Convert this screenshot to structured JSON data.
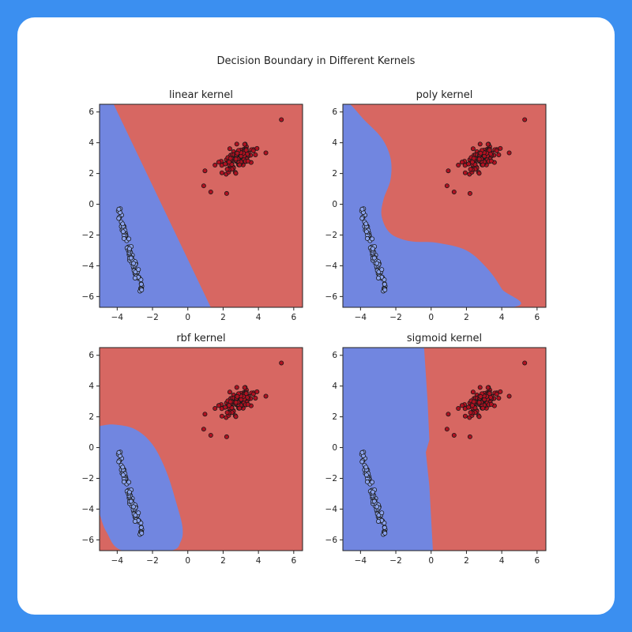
{
  "figure": {
    "suptitle": "Decision Boundary in Different Kernels"
  },
  "colors": {
    "class_neg_region": "#7186e0",
    "class_pos_region": "#d76762",
    "class_neg_point": "#8aa2ee",
    "class_pos_point": "#b01020",
    "point_edge": "#1a1a1a",
    "background": "#3b8ff0",
    "card": "#ffffff"
  },
  "chart_data": [
    {
      "type": "scatter",
      "title": "linear kernel",
      "xlim": [
        -5,
        6.5
      ],
      "ylim": [
        -6.7,
        6.5
      ],
      "xticks": [
        -4,
        -2,
        0,
        2,
        4,
        6
      ],
      "yticks": [
        6,
        4,
        2,
        0,
        -2,
        -4,
        -6
      ],
      "tick_labels_x": [
        "−4",
        "−2",
        "0",
        "2",
        "4",
        "6"
      ],
      "tick_labels_y": [
        "6",
        "4",
        "2",
        "0",
        "−2",
        "−4",
        "−6"
      ],
      "boundary_blue_region": [
        [
          -5,
          6.5
        ],
        [
          -4.2,
          6.5
        ],
        [
          1.3,
          -6.7
        ],
        [
          -5,
          -6.7
        ]
      ],
      "cluster_neg": {
        "center": [
          -3.3,
          -2.9
        ],
        "extent": [
          [
            -4.0,
            -0.2
          ],
          [
            -2.6,
            -5.7
          ]
        ]
      },
      "cluster_pos": {
        "center": [
          2.8,
          3.0
        ],
        "outliers": [
          [
            5.3,
            5.5
          ],
          [
            0.9,
            1.2
          ],
          [
            1.3,
            0.8
          ],
          [
            2.2,
            0.7
          ]
        ]
      }
    },
    {
      "type": "scatter",
      "title": "poly kernel",
      "xlim": [
        -5,
        6.5
      ],
      "ylim": [
        -6.7,
        6.5
      ],
      "xticks": [
        -4,
        -2,
        0,
        2,
        4,
        6
      ],
      "yticks": [
        6,
        4,
        2,
        0,
        -2,
        -4,
        -6
      ],
      "tick_labels_x": [
        "−4",
        "−2",
        "0",
        "2",
        "4",
        "6"
      ],
      "tick_labels_y": [
        "6",
        "4",
        "2",
        "0",
        "−2",
        "−4",
        "−6"
      ],
      "boundary_blue_region": [
        [
          -5,
          6.5
        ],
        [
          -4.6,
          6.5
        ],
        [
          -3.8,
          5.5
        ],
        [
          -2.8,
          4.3
        ],
        [
          -2.3,
          3.0
        ],
        [
          -2.3,
          1.6
        ],
        [
          -2.7,
          0.3
        ],
        [
          -2.8,
          -0.8
        ],
        [
          -2.3,
          -1.9
        ],
        [
          -1.2,
          -2.4
        ],
        [
          0.3,
          -2.5
        ],
        [
          2.0,
          -3.0
        ],
        [
          3.2,
          -4.2
        ],
        [
          4.0,
          -5.5
        ],
        [
          4.5,
          -6.7
        ],
        [
          -5,
          -6.7
        ]
      ],
      "cluster_neg": {
        "center": [
          -3.3,
          -2.9
        ],
        "extent": [
          [
            -4.0,
            -0.2
          ],
          [
            -2.6,
            -5.7
          ]
        ]
      },
      "cluster_pos": {
        "center": [
          2.8,
          3.0
        ],
        "outliers": [
          [
            5.3,
            5.5
          ],
          [
            0.9,
            1.2
          ],
          [
            1.3,
            0.8
          ],
          [
            2.2,
            0.7
          ]
        ]
      }
    },
    {
      "type": "scatter",
      "title": "rbf kernel",
      "xlim": [
        -5,
        6.5
      ],
      "ylim": [
        -6.7,
        6.5
      ],
      "xticks": [
        -4,
        -2,
        0,
        2,
        4,
        6
      ],
      "yticks": [
        6,
        4,
        2,
        0,
        -2,
        -4,
        -6
      ],
      "tick_labels_x": [
        "−4",
        "−2",
        "0",
        "2",
        "4",
        "6"
      ],
      "tick_labels_y": [
        "6",
        "4",
        "2",
        "0",
        "−2",
        "−4",
        "−6"
      ],
      "boundary_blue_region": [
        [
          -5,
          1.4
        ],
        [
          -4.2,
          1.5
        ],
        [
          -3.0,
          1.2
        ],
        [
          -2.0,
          0.2
        ],
        [
          -1.2,
          -1.6
        ],
        [
          -0.6,
          -3.8
        ],
        [
          -0.3,
          -5.2
        ],
        [
          -0.4,
          -6.1
        ],
        [
          -1.0,
          -6.7
        ],
        [
          -3.7,
          -6.7
        ],
        [
          -4.6,
          -5.5
        ],
        [
          -5,
          -4.3
        ]
      ],
      "cluster_neg": {
        "center": [
          -3.3,
          -2.9
        ],
        "extent": [
          [
            -4.0,
            -0.2
          ],
          [
            -2.6,
            -5.7
          ]
        ]
      },
      "cluster_pos": {
        "center": [
          2.8,
          3.0
        ],
        "outliers": [
          [
            5.3,
            5.5
          ],
          [
            0.9,
            1.2
          ],
          [
            1.3,
            0.8
          ],
          [
            2.2,
            0.7
          ]
        ]
      }
    },
    {
      "type": "scatter",
      "title": "sigmoid kernel",
      "xlim": [
        -5,
        6.5
      ],
      "ylim": [
        -6.7,
        6.5
      ],
      "xticks": [
        -4,
        -2,
        0,
        2,
        4,
        6
      ],
      "yticks": [
        6,
        4,
        2,
        0,
        -2,
        -4,
        -6
      ],
      "tick_labels_x": [
        "−4",
        "−2",
        "0",
        "2",
        "4",
        "6"
      ],
      "tick_labels_y": [
        "6",
        "4",
        "2",
        "0",
        "−2",
        "−4",
        "−6"
      ],
      "boundary_blue_region": [
        [
          -5,
          6.5
        ],
        [
          -0.4,
          6.5
        ],
        [
          -0.2,
          3.0
        ],
        [
          -0.1,
          0.5
        ],
        [
          -0.3,
          -0.3
        ],
        [
          -0.1,
          -2.5
        ],
        [
          0.1,
          -6.7
        ],
        [
          -5,
          -6.7
        ]
      ],
      "cluster_neg": {
        "center": [
          -3.3,
          -2.9
        ],
        "extent": [
          [
            -4.0,
            -0.2
          ],
          [
            -2.6,
            -5.7
          ]
        ]
      },
      "cluster_pos": {
        "center": [
          2.8,
          3.0
        ],
        "outliers": [
          [
            5.3,
            5.5
          ],
          [
            0.9,
            1.2
          ],
          [
            1.3,
            0.8
          ],
          [
            2.2,
            0.7
          ]
        ]
      }
    }
  ]
}
